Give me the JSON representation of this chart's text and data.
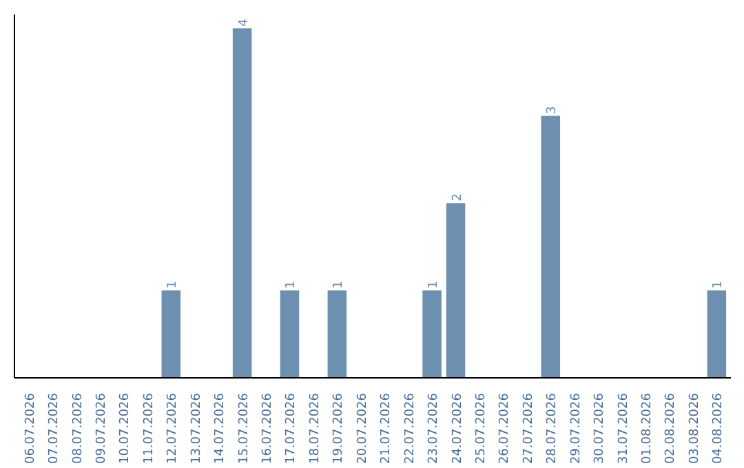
{
  "chart_data": {
    "type": "bar",
    "categories": [
      "06.07.2026",
      "07.07.2026",
      "08.07.2026",
      "09.07.2026",
      "10.07.2026",
      "11.07.2026",
      "12.07.2026",
      "13.07.2026",
      "14.07.2026",
      "15.07.2026",
      "16.07.2026",
      "17.07.2026",
      "18.07.2026",
      "19.07.2026",
      "20.07.2026",
      "21.07.2026",
      "22.07.2026",
      "23.07.2026",
      "24.07.2026",
      "25.07.2026",
      "26.07.2026",
      "27.07.2026",
      "28.07.2026",
      "29.07.2026",
      "30.07.2026",
      "31.07.2026",
      "01.08.2026",
      "02.08.2026",
      "03.08.2026",
      "04.08.2026"
    ],
    "values": [
      null,
      null,
      null,
      null,
      null,
      null,
      1,
      null,
      null,
      4,
      null,
      1,
      null,
      1,
      null,
      null,
      null,
      1,
      2,
      null,
      null,
      null,
      3,
      null,
      null,
      null,
      null,
      null,
      null,
      1
    ],
    "color": "#6d8fb0",
    "data_labels": true,
    "tick_labels": "x"
  }
}
